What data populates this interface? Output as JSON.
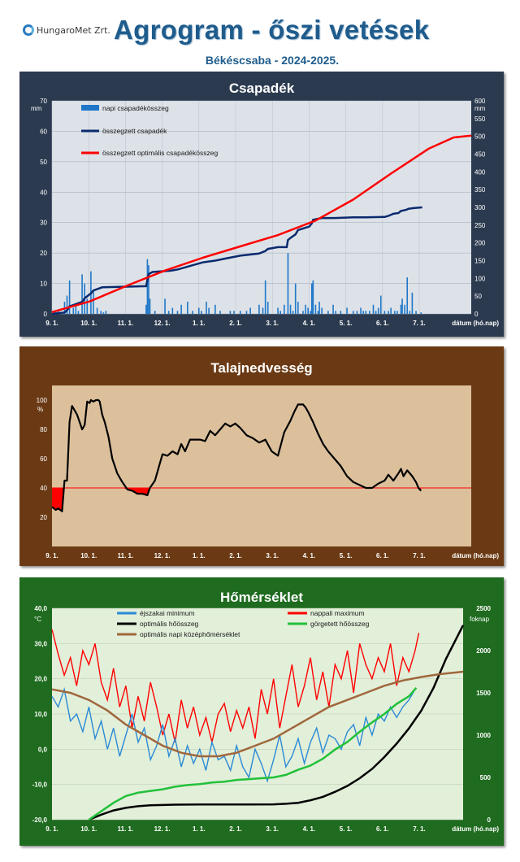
{
  "header": {
    "logo_text": "HungaroMet Zrt.",
    "title": "Agrogram - őszi vetések",
    "subtitle": "Békéscsaba  - 2024-2025."
  },
  "colors": {
    "title_blue": "#1f5c8c",
    "panel1_frame": "#2b3a4f",
    "panel1_plot": "#dde2e8",
    "panel2_frame": "#6b3a14",
    "panel2_plot": "#dcc09c",
    "panel3_frame": "#1f6b1f",
    "panel3_plot": "#e2efd9",
    "bar_blue": "#1f77c9",
    "cum_navy": "#0a2a6e",
    "opt_red": "#ff0000",
    "soil_black": "#000000",
    "deficit_red": "#ff0000",
    "tmin_blue": "#2a8ad6",
    "tmax_red": "#ff0000",
    "gdd_green": "#22c13a",
    "tmean_brown": "#a0673c"
  },
  "chart_data": [
    {
      "type": "bar+line",
      "title": "Csapadék",
      "ylabel_left": "mm",
      "ylabel_right": "mm",
      "xlabel": "dátum (hó.nap)",
      "x_ticks": [
        "9. 1.",
        "10. 1.",
        "11. 1.",
        "12. 1.",
        "1. 1.",
        "2. 1.",
        "3. 1.",
        "4. 1.",
        "5. 1.",
        "6. 1.",
        "7. 1."
      ],
      "xlim_days": [
        0,
        334
      ],
      "ylim_left": [
        0,
        70
      ],
      "ylim_right": [
        0,
        600
      ],
      "yticks_left": [
        0,
        10,
        20,
        30,
        40,
        50,
        60,
        70
      ],
      "yticks_right": [
        0,
        50,
        100,
        150,
        200,
        250,
        300,
        350,
        400,
        450,
        500,
        550,
        600
      ],
      "grid": true,
      "legend_placement": "top-left",
      "legend": [
        "napi csapadékösszeg",
        "összegzett csapadék",
        "összegzett optimális csapadékösszeg"
      ],
      "daily_precip": {
        "x_days": [
          3,
          5,
          10,
          12,
          14,
          17,
          19,
          21,
          24,
          26,
          28,
          31,
          33,
          36,
          39,
          41,
          43,
          75,
          76,
          77,
          78,
          82,
          90,
          93,
          96,
          100,
          103,
          108,
          112,
          117,
          119,
          123,
          125,
          130,
          134,
          142,
          145,
          150,
          155,
          158,
          165,
          168,
          170,
          172,
          180,
          182,
          185,
          188,
          190,
          192,
          194,
          196,
          200,
          202,
          204,
          206,
          207,
          208,
          210,
          212,
          213,
          215,
          220,
          224,
          226,
          230,
          235,
          240,
          243,
          246,
          248,
          250,
          253,
          256,
          258,
          260,
          262,
          265,
          268,
          270,
          273,
          275,
          278,
          279,
          281,
          283,
          285,
          287,
          290,
          294
        ],
        "values": [
          0.5,
          1,
          4,
          6,
          11,
          2,
          3,
          1,
          13,
          10,
          5,
          14,
          8,
          2,
          1,
          0.5,
          1,
          3,
          18,
          16,
          5,
          1,
          5,
          1,
          2,
          1,
          3,
          4,
          1,
          2,
          1,
          4,
          2,
          3,
          1,
          1,
          1,
          1,
          1,
          2,
          3,
          2,
          11,
          4,
          2,
          1,
          3,
          20,
          3,
          1,
          10,
          4,
          1,
          3,
          2,
          1,
          10,
          11,
          3,
          1,
          4,
          2,
          1,
          3,
          1,
          1,
          2,
          1,
          1,
          2,
          1,
          1,
          1,
          3,
          1,
          2,
          6,
          1,
          1,
          2,
          1,
          1,
          3,
          5,
          3,
          12,
          1,
          7,
          1,
          0.5
        ]
      },
      "cumulative_precip": {
        "x_days": [
          0,
          10,
          12,
          14,
          24,
          26,
          31,
          33,
          40,
          75,
          76,
          77,
          80,
          95,
          100,
          110,
          120,
          130,
          140,
          150,
          165,
          170,
          172,
          180,
          187,
          188,
          190,
          194,
          196,
          205,
          207,
          208,
          212,
          215,
          225,
          240,
          250,
          265,
          268,
          272,
          276,
          278,
          282,
          284,
          288,
          295
        ],
        "values_mm": [
          0,
          4,
          10,
          21,
          34,
          44,
          58,
          66,
          75,
          78,
          96,
          112,
          118,
          122,
          125,
          135,
          145,
          150,
          157,
          164,
          170,
          177,
          183,
          188,
          188,
          208,
          214,
          224,
          236,
          246,
          255,
          265,
          268,
          270,
          270,
          272,
          272,
          273,
          276,
          282,
          284,
          290,
          293,
          296,
          298,
          300
        ]
      },
      "optimal_cumulative_precip": {
        "x_days": [
          0,
          30,
          60,
          90,
          120,
          150,
          180,
          210,
          240,
          270,
          300,
          320,
          334
        ],
        "values_mm": [
          5,
          35,
          80,
          122,
          158,
          190,
          222,
          263,
          322,
          395,
          465,
          497,
          502
        ]
      }
    },
    {
      "type": "line",
      "title": "Talajnedvesség",
      "ylabel": "%",
      "xlabel": "dátum (hó.nap)",
      "x_ticks": [
        "9. 1.",
        "10. 1.",
        "11. 1.",
        "12. 1.",
        "1. 1.",
        "2. 1.",
        "3. 1.",
        "4. 1.",
        "5. 1.",
        "6. 1.",
        "7. 1."
      ],
      "xlim_days": [
        0,
        334
      ],
      "ylim": [
        0,
        110
      ],
      "yticks": [
        20,
        40,
        60,
        80,
        100
      ],
      "threshold": 40,
      "soil_moisture": {
        "x_days": [
          0,
          3,
          5,
          8,
          10,
          12,
          14,
          16,
          20,
          22,
          24,
          26,
          28,
          30,
          31,
          33,
          35,
          37,
          38,
          40,
          42,
          45,
          48,
          52,
          56,
          60,
          64,
          68,
          72,
          76,
          78,
          82,
          88,
          92,
          96,
          100,
          103,
          106,
          110,
          114,
          118,
          122,
          126,
          130,
          134,
          138,
          142,
          146,
          150,
          155,
          160,
          165,
          170,
          175,
          180,
          185,
          190,
          193,
          196,
          200,
          202,
          204,
          208,
          212,
          216,
          220,
          225,
          230,
          235,
          240,
          245,
          250,
          255,
          260,
          265,
          268,
          272,
          276,
          278,
          280,
          283,
          285,
          287,
          290,
          292,
          294
        ],
        "values_pct": [
          27,
          25,
          26,
          24,
          45,
          45,
          85,
          96,
          90,
          85,
          80,
          83,
          99,
          98,
          100,
          99,
          100,
          100,
          99,
          90,
          85,
          75,
          60,
          50,
          44,
          39,
          38,
          36,
          36,
          35,
          40,
          45,
          63,
          62,
          65,
          63,
          70,
          65,
          73,
          73,
          73,
          72,
          79,
          76,
          80,
          84,
          82,
          84,
          81,
          76,
          74,
          71,
          73,
          65,
          62,
          78,
          86,
          92,
          97,
          97,
          95,
          92,
          85,
          77,
          70,
          65,
          60,
          55,
          48,
          44,
          42,
          40,
          40,
          43,
          45,
          49,
          45,
          50,
          53,
          48,
          52,
          50,
          48,
          44,
          40,
          38
        ]
      }
    },
    {
      "type": "line",
      "title": "Hőmérséklet",
      "ylabel_left": "°C",
      "ylabel_right": "foknap",
      "xlabel": "dátum (hó.nap)",
      "x_ticks": [
        "9. 1.",
        "10. 1.",
        "11. 1.",
        "12. 1.",
        "1. 1.",
        "2. 1.",
        "3. 1.",
        "4. 1.",
        "5. 1.",
        "6. 1.",
        "7. 1."
      ],
      "xlim_days": [
        0,
        334
      ],
      "ylim_left": [
        -20,
        40
      ],
      "ylim_right": [
        0,
        2500
      ],
      "yticks_left": [
        "-20,0",
        "-10,0",
        "0,0",
        "10,0",
        "20,0",
        "30,0",
        "40,0"
      ],
      "yticks_right": [
        0,
        500,
        1000,
        1500,
        2000,
        2500
      ],
      "legend_placement": "top",
      "legend": [
        "éjszakai minimum",
        "nappali maximum",
        "optimális hőösszeg",
        "görgetett hőösszeg",
        "optimális napi középhőmérséklet"
      ],
      "tmin": {
        "x_days": [
          0,
          5,
          10,
          15,
          20,
          25,
          30,
          35,
          40,
          45,
          50,
          55,
          60,
          65,
          70,
          75,
          80,
          85,
          90,
          95,
          100,
          105,
          110,
          115,
          120,
          125,
          130,
          135,
          140,
          145,
          150,
          155,
          160,
          165,
          170,
          175,
          180,
          185,
          190,
          195,
          200,
          205,
          210,
          215,
          220,
          225,
          230,
          235,
          240,
          245,
          250,
          255,
          260,
          265,
          270,
          275,
          280,
          285,
          290,
          295
        ],
        "values": [
          15,
          12,
          17,
          8,
          10,
          5,
          12,
          3,
          8,
          0,
          6,
          -2,
          4,
          10,
          2,
          6,
          -3,
          1,
          7,
          -2,
          3,
          -5,
          1,
          -4,
          0,
          -6,
          2,
          -3,
          -2,
          -6,
          1,
          -5,
          -8,
          0,
          -4,
          -9,
          -3,
          4,
          -5,
          -2,
          3,
          -4,
          2,
          6,
          -1,
          4,
          3,
          0,
          5,
          7,
          1,
          9,
          4,
          10,
          8,
          12,
          9,
          12,
          14,
          17
        ]
      },
      "tmax": {
        "x_days": [
          0,
          5,
          10,
          15,
          20,
          25,
          30,
          35,
          40,
          45,
          50,
          55,
          60,
          65,
          70,
          75,
          80,
          85,
          90,
          95,
          100,
          105,
          110,
          115,
          120,
          125,
          130,
          135,
          140,
          145,
          150,
          155,
          160,
          165,
          170,
          175,
          180,
          185,
          190,
          195,
          200,
          205,
          210,
          215,
          220,
          225,
          230,
          235,
          240,
          245,
          250,
          255,
          260,
          265,
          270,
          275,
          280,
          285,
          290,
          295,
          298
        ],
        "values": [
          34,
          27,
          21,
          26,
          18,
          28,
          24,
          30,
          19,
          14,
          23,
          12,
          18,
          6,
          15,
          8,
          19,
          12,
          4,
          10,
          2,
          14,
          6,
          12,
          4,
          9,
          2,
          10,
          13,
          5,
          11,
          6,
          12,
          3,
          17,
          10,
          20,
          6,
          15,
          24,
          12,
          18,
          26,
          14,
          22,
          12,
          24,
          20,
          28,
          16,
          30,
          24,
          20,
          26,
          22,
          30,
          18,
          26,
          22,
          28,
          33
        ]
      },
      "optimal_gdd": {
        "x_days": [
          30,
          40,
          50,
          60,
          70,
          80,
          100,
          120,
          140,
          160,
          180,
          190,
          200,
          210,
          220,
          230,
          240,
          250,
          260,
          270,
          280,
          290,
          300,
          310,
          320,
          334
        ],
        "values": [
          0,
          60,
          110,
          140,
          160,
          170,
          178,
          180,
          180,
          180,
          182,
          188,
          200,
          230,
          270,
          330,
          400,
          490,
          600,
          740,
          900,
          1080,
          1290,
          1560,
          1900,
          2300
        ]
      },
      "rolling_gdd": {
        "x_days": [
          30,
          40,
          50,
          60,
          70,
          80,
          90,
          100,
          110,
          120,
          130,
          140,
          150,
          160,
          170,
          180,
          190,
          200,
          210,
          220,
          230,
          240,
          250,
          260,
          270,
          280,
          290,
          296
        ],
        "values": [
          0,
          100,
          200,
          280,
          320,
          340,
          360,
          390,
          410,
          420,
          440,
          450,
          470,
          480,
          490,
          500,
          530,
          590,
          640,
          720,
          830,
          920,
          1040,
          1150,
          1250,
          1370,
          1460,
          1560
        ]
      },
      "optimal_mean_temp": {
        "x_days": [
          0,
          15,
          30,
          45,
          60,
          75,
          90,
          105,
          120,
          135,
          150,
          165,
          180,
          195,
          210,
          225,
          240,
          255,
          270,
          285,
          300,
          315,
          334
        ],
        "values": [
          17,
          16,
          14,
          11,
          7,
          4,
          1,
          -1,
          -2,
          -2,
          -1,
          1,
          3,
          6,
          9,
          12,
          14,
          16,
          18,
          19.5,
          20.5,
          21.3,
          22
        ]
      }
    }
  ]
}
